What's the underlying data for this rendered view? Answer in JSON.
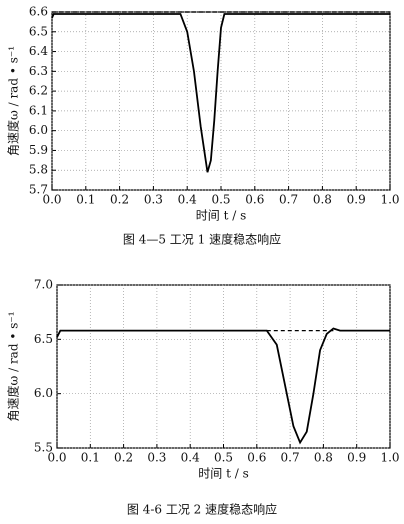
{
  "chart_data": [
    {
      "type": "line",
      "caption": "图 4—5 工况 1 速度稳态响应",
      "xlabel": "时间 t / s",
      "ylabel": "角速度ω / rad • s⁻¹",
      "x": [
        0,
        0.005,
        0.1,
        0.2,
        0.3,
        0.38,
        0.4,
        0.42,
        0.44,
        0.46,
        0.47,
        0.48,
        0.49,
        0.5,
        0.51,
        0.6,
        0.7,
        0.8,
        0.9,
        1.0
      ],
      "series": [
        {
          "color": "#000000",
          "style": "solid",
          "values": [
            6.57,
            6.59,
            6.59,
            6.59,
            6.59,
            6.59,
            6.5,
            6.3,
            6.02,
            5.79,
            5.85,
            6.05,
            6.3,
            6.52,
            6.59,
            6.59,
            6.59,
            6.59,
            6.59,
            6.59
          ]
        },
        {
          "color": "#000000",
          "style": "dashed",
          "values": [
            6.6,
            6.6,
            6.6,
            6.6,
            6.6,
            6.6,
            6.6,
            6.6,
            6.6,
            6.6,
            6.6,
            6.6,
            6.6,
            6.6,
            6.6,
            6.6,
            6.6,
            6.6,
            6.6,
            6.6
          ]
        }
      ],
      "xlim": [
        0,
        1
      ],
      "ylim": [
        5.7,
        6.6
      ],
      "xticks": [
        {
          "value": 0,
          "label": "0.0"
        },
        0.1,
        0.2,
        0.3,
        0.4,
        0.5,
        0.6,
        0.7,
        0.8,
        0.9,
        {
          "value": 1,
          "label": "1.0"
        }
      ],
      "yticks": [
        5.7,
        5.8,
        5.9,
        {
          "value": 6,
          "label": "6.0"
        },
        6.1,
        6.2,
        6.3,
        6.4,
        6.5,
        6.6
      ],
      "grid": true
    },
    {
      "type": "line",
      "caption": "图 4-6 工况 2 速度稳态响应",
      "xlabel": "时间 t / s",
      "ylabel": "角速度ω / rad • s⁻¹",
      "x": [
        0,
        0.01,
        0.1,
        0.2,
        0.3,
        0.4,
        0.5,
        0.6,
        0.63,
        0.66,
        0.69,
        0.71,
        0.73,
        0.75,
        0.77,
        0.79,
        0.81,
        0.83,
        0.85,
        0.9,
        1.0
      ],
      "series": [
        {
          "color": "#000000",
          "style": "solid",
          "values": [
            6.52,
            6.58,
            6.58,
            6.58,
            6.58,
            6.58,
            6.58,
            6.58,
            6.58,
            6.45,
            6.0,
            5.7,
            5.55,
            5.65,
            6.0,
            6.4,
            6.55,
            6.6,
            6.58,
            6.58,
            6.58
          ]
        },
        {
          "color": "#000000",
          "style": "dashed",
          "values": [
            null,
            null,
            null,
            null,
            null,
            null,
            null,
            null,
            6.58,
            6.58,
            6.58,
            6.58,
            6.58,
            6.58,
            6.58,
            6.58,
            6.58,
            6.58,
            null,
            null,
            null
          ]
        }
      ],
      "xlim": [
        0,
        1
      ],
      "ylim": [
        5.5,
        7.0
      ],
      "xticks": [
        {
          "value": 0,
          "label": "0.0"
        },
        0.1,
        0.2,
        0.3,
        0.4,
        0.5,
        0.6,
        0.7,
        0.8,
        0.9,
        {
          "value": 1,
          "label": "1.0"
        }
      ],
      "yticks": [
        5.5,
        {
          "value": 6,
          "label": "6.0"
        },
        6.5,
        {
          "value": 7,
          "label": "7.0"
        }
      ],
      "grid": true
    }
  ]
}
